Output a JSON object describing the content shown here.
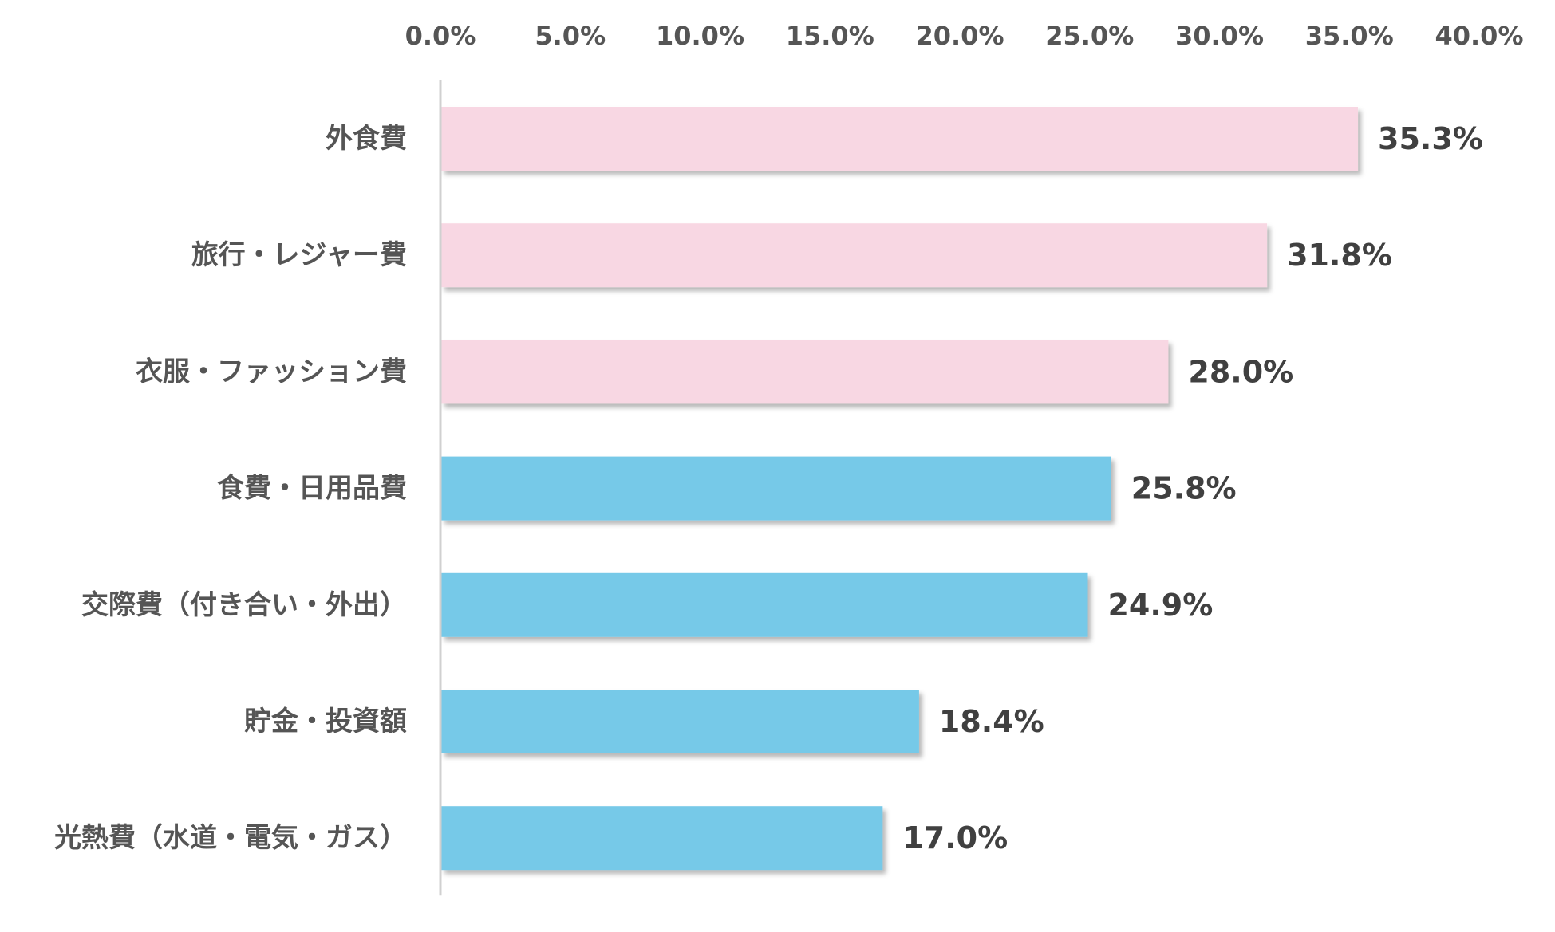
{
  "chart_data": {
    "type": "bar",
    "orientation": "horizontal",
    "categories": [
      "外食費",
      "旅行・レジャー費",
      "衣服・ファッション費",
      "食費・日用品費",
      "交際費（付き合い・外出）",
      "貯金・投資額",
      "光熱費（水道・電気・ガス）"
    ],
    "values": [
      35.3,
      31.8,
      28.0,
      25.8,
      24.9,
      18.4,
      17.0
    ],
    "value_labels": [
      "35.3%",
      "31.8%",
      "28.0%",
      "25.8%",
      "24.9%",
      "18.4%",
      "17.0%"
    ],
    "bar_colors": [
      "#f8d7e3",
      "#f8d7e3",
      "#f8d7e3",
      "#76c9e8",
      "#76c9e8",
      "#76c9e8",
      "#76c9e8"
    ],
    "xlim": [
      0,
      40
    ],
    "xticks": [
      0,
      5,
      10,
      15,
      20,
      25,
      30,
      35,
      40
    ],
    "xtick_labels": [
      "0.0%",
      "5.0%",
      "10.0%",
      "15.0%",
      "20.0%",
      "25.0%",
      "30.0%",
      "35.0%",
      "40.0%"
    ],
    "x_axis_position": "top",
    "grid": false,
    "legend": "none",
    "title": "",
    "xlabel": "",
    "ylabel": ""
  }
}
